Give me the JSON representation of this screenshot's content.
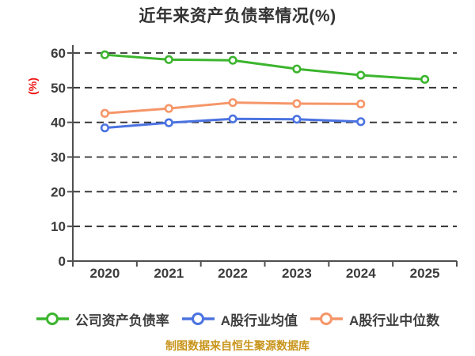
{
  "page": {
    "title": "近年来资产负债率情况(%)",
    "footer": "制图数据来自恒生聚源数据库"
  },
  "chart_data": {
    "type": "line",
    "title": "近年来资产负债率情况(%)",
    "ylabel": "(%)",
    "xlabel": "",
    "categories": [
      "2020",
      "2021",
      "2022",
      "2023",
      "2024",
      "2025"
    ],
    "series": [
      {
        "name": "公司资产负债率",
        "color": "#3cb52e",
        "values": [
          59.5,
          58.1,
          57.9,
          55.4,
          53.6,
          52.4
        ]
      },
      {
        "name": "A股行业均值",
        "color": "#4b73e1",
        "values": [
          38.4,
          39.9,
          41.0,
          40.9,
          40.2,
          null
        ]
      },
      {
        "name": "A股行业中位数",
        "color": "#f59669",
        "values": [
          42.6,
          44.0,
          45.7,
          45.4,
          45.3,
          null
        ]
      }
    ],
    "ylim": [
      0,
      60
    ],
    "yticks": [
      0,
      10,
      20,
      30,
      40,
      50,
      60
    ],
    "grid": "dashed-horizontal",
    "legend_position": "bottom",
    "marker": "circle-white-fill",
    "colors": {
      "title": "#333333",
      "axis": "#4f4f4f",
      "tick_label": "#3c3c3c",
      "grid": "#2f2f2f",
      "ylabel": "#ee1111",
      "legend_text": "#3f3f3f",
      "footer": "#c8941a",
      "background": "#ffffff"
    }
  }
}
